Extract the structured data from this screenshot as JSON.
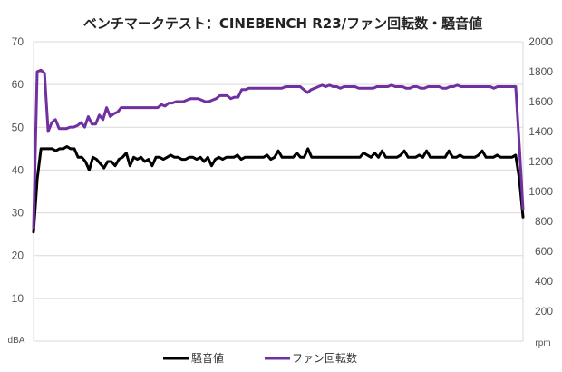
{
  "chart_data": {
    "type": "line",
    "title": "ベンチマークテスト：CINEBENCH R23/ファン回転数・騒音値",
    "y_left_unit": "dBA",
    "y_right_unit": "rpm",
    "y_left_ticks": [
      0,
      10,
      20,
      30,
      40,
      50,
      60,
      70
    ],
    "y_left_tick_labels": [
      "10",
      "20",
      "30",
      "40",
      "50",
      "60",
      "70"
    ],
    "y_right_ticks": [
      0,
      200,
      400,
      600,
      800,
      1000,
      1200,
      1400,
      1600,
      1800,
      2000
    ],
    "y_right_tick_labels": [
      "200",
      "400",
      "600",
      "800",
      "1000",
      "1200",
      "1400",
      "1600",
      "1800",
      "2000"
    ],
    "y_left_range": [
      0,
      70
    ],
    "y_right_range": [
      0,
      2000
    ],
    "grid": "horizontal",
    "legend_position": "bottom",
    "series": [
      {
        "name": "騒音値",
        "axis": "left",
        "color": "#000000",
        "values": [
          25.5,
          38,
          45,
          45,
          45,
          45,
          44.5,
          45,
          45,
          45.5,
          45,
          45,
          43,
          43,
          42,
          40,
          43,
          42.5,
          41.5,
          40.5,
          42,
          42,
          41,
          42.5,
          43,
          44,
          41,
          43,
          42.5,
          43,
          42,
          42.5,
          41,
          43,
          43,
          42.5,
          43,
          43.5,
          43,
          43,
          42.5,
          42.5,
          43,
          43,
          42.5,
          43,
          42,
          43,
          41,
          42.5,
          43,
          42.5,
          43,
          43,
          43,
          43.5,
          42.5,
          43,
          43,
          43,
          43,
          43,
          43,
          43.5,
          42.5,
          43,
          44.5,
          43,
          43,
          43,
          43,
          44,
          43,
          43,
          45,
          43,
          43,
          43,
          43,
          43,
          43,
          43,
          43,
          43,
          43,
          43,
          43,
          43,
          43,
          44,
          43.5,
          43,
          44,
          43,
          44.5,
          43,
          43,
          43,
          43,
          43.5,
          44.5,
          43,
          43,
          43,
          43.5,
          43,
          44.5,
          43,
          43,
          43,
          43,
          43,
          44.5,
          43,
          43,
          43.5,
          43,
          43,
          43,
          43,
          43.5,
          44.5,
          43,
          43,
          43,
          43.5,
          43,
          43,
          43,
          43,
          43.5,
          38,
          29
        ]
      },
      {
        "name": "ファン回転数",
        "axis": "right",
        "color": "#7030a0",
        "values": [
          760,
          1800,
          1810,
          1790,
          1400,
          1460,
          1480,
          1420,
          1420,
          1420,
          1430,
          1430,
          1440,
          1460,
          1430,
          1500,
          1450,
          1450,
          1510,
          1480,
          1560,
          1500,
          1520,
          1530,
          1560,
          1560,
          1560,
          1560,
          1560,
          1560,
          1560,
          1560,
          1560,
          1560,
          1560,
          1580,
          1570,
          1590,
          1590,
          1600,
          1600,
          1600,
          1610,
          1620,
          1620,
          1620,
          1610,
          1600,
          1600,
          1610,
          1620,
          1640,
          1640,
          1640,
          1620,
          1630,
          1630,
          1680,
          1680,
          1690,
          1690,
          1690,
          1690,
          1690,
          1690,
          1690,
          1690,
          1690,
          1690,
          1700,
          1700,
          1700,
          1700,
          1700,
          1680,
          1660,
          1680,
          1690,
          1700,
          1710,
          1700,
          1710,
          1700,
          1700,
          1690,
          1700,
          1700,
          1700,
          1700,
          1690,
          1690,
          1690,
          1690,
          1690,
          1700,
          1700,
          1700,
          1700,
          1710,
          1700,
          1700,
          1700,
          1690,
          1690,
          1700,
          1700,
          1690,
          1690,
          1700,
          1700,
          1700,
          1700,
          1690,
          1690,
          1700,
          1700,
          1710,
          1700,
          1700,
          1700,
          1700,
          1700,
          1700,
          1700,
          1700,
          1700,
          1690,
          1700,
          1700,
          1700,
          1700,
          1700,
          1700,
          1300,
          880
        ]
      }
    ]
  }
}
